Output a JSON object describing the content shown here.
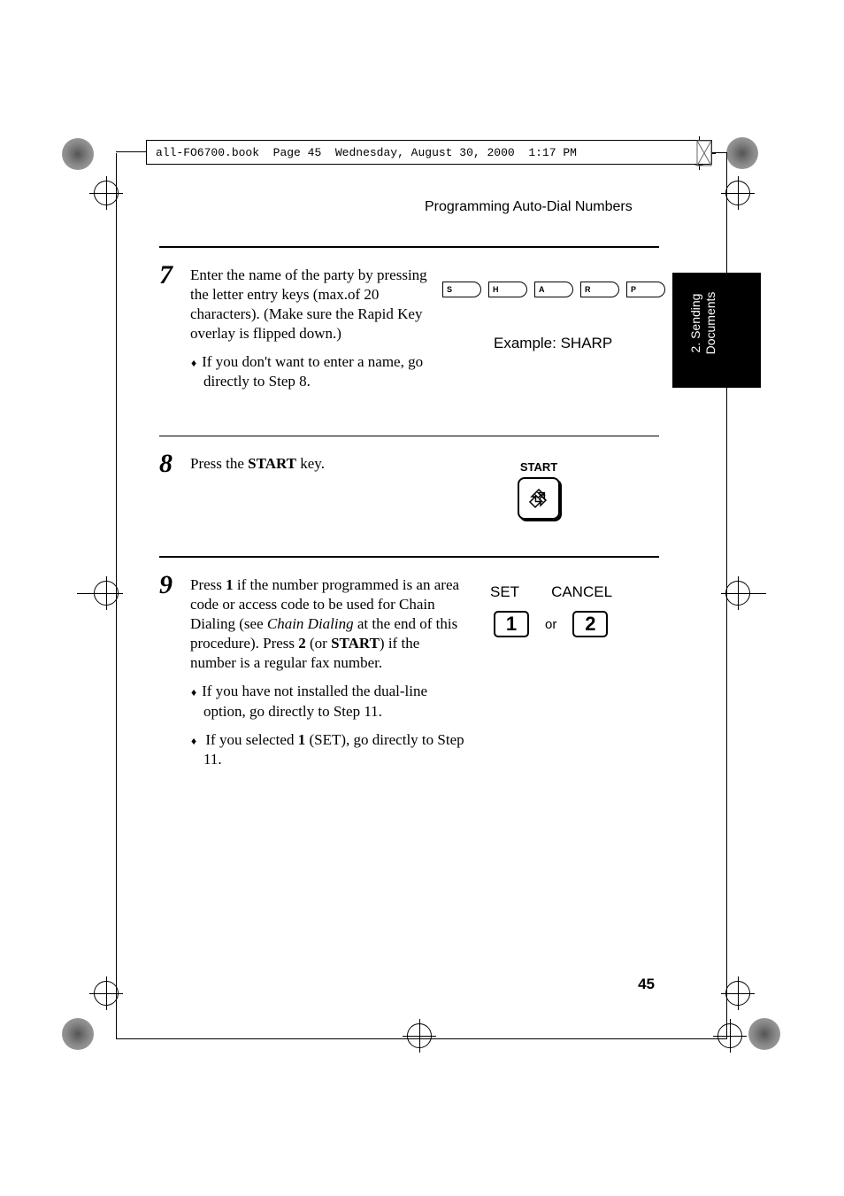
{
  "header": {
    "filename": "all-FO6700.book",
    "pageinfo": "Page 45",
    "date": "Wednesday, August 30, 2000",
    "time": "1:17 PM"
  },
  "running_head": "Programming Auto-Dial Numbers",
  "side_tab": "2. Sending\nDocuments",
  "steps": {
    "s7": {
      "num": "7",
      "body": "Enter the name of the party by pressing the letter entry keys (max.of 20 characters). (Make sure the Rapid Key overlay is flipped down.)",
      "bullet1": "If you don't want to enter a name, go directly to Step 8.",
      "keys": [
        "S",
        "H",
        "A",
        "R",
        "P"
      ],
      "example": "Example: SHARP"
    },
    "s8": {
      "num": "8",
      "body_pre": "Press the ",
      "body_bold": "START",
      "body_post": " key.",
      "start_label": "START"
    },
    "s9": {
      "num": "9",
      "body_pre": "Press ",
      "b1": "1",
      "body_mid1": " if the number programmed is an area code or access code to be used for Chain Dialing (see ",
      "italic": "Chain Dialing",
      "body_mid2": " at the end of this procedure). Press ",
      "b2": "2",
      "body_mid3": " (or ",
      "b3": "START",
      "body_post": ") if the number is a regular fax number.",
      "bullet1": "If you have not installed the dual-line option, go directly to Step 11.",
      "bullet2_pre": "If you selected ",
      "bullet2_bold": "1",
      "bullet2_post": " (SET), go directly to Step 11.",
      "set_label": "SET",
      "cancel_label": "CANCEL",
      "key1": "1",
      "or": "or",
      "key2": "2"
    }
  },
  "page_number": "45"
}
